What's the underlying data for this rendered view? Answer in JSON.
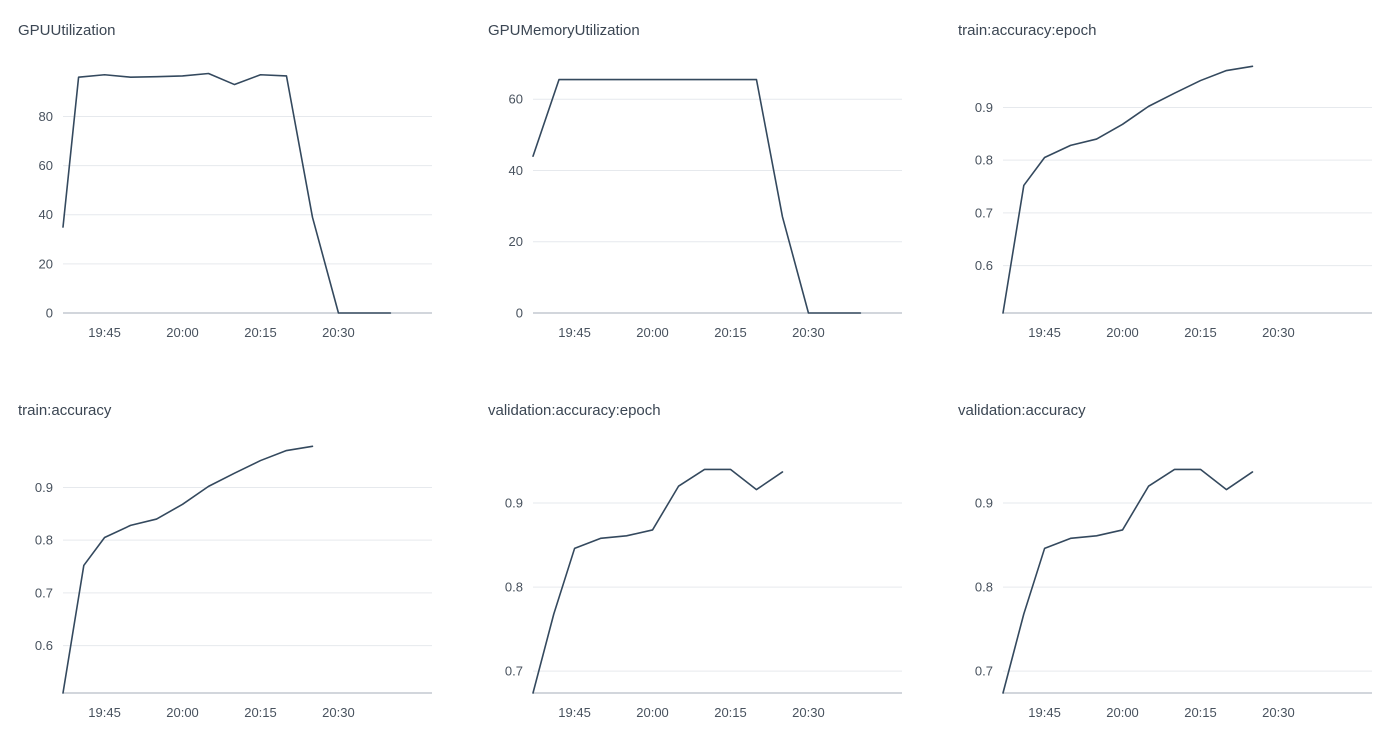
{
  "chart_data": [
    {
      "type": "line",
      "title": "GPUUtilization",
      "xlabel": "",
      "ylabel": "",
      "x": [
        "19:37",
        "19:40",
        "19:45",
        "19:50",
        "19:55",
        "20:00",
        "20:05",
        "20:10",
        "20:15",
        "20:20",
        "20:25",
        "20:30",
        "20:35",
        "20:40"
      ],
      "values": [
        35,
        96,
        97,
        96,
        96.2,
        96.5,
        97.5,
        93,
        97,
        96.5,
        39,
        0,
        0,
        0
      ],
      "xlim": [
        "19:37",
        "20:48"
      ],
      "ylim": [
        0,
        103
      ],
      "yticks": [
        0,
        20,
        40,
        60,
        80
      ],
      "ytick_labels": [
        "0",
        "20",
        "40",
        "60",
        "80"
      ],
      "xticks": [
        "19:45",
        "20:00",
        "20:15",
        "20:30"
      ],
      "grid": true,
      "color": "#34495e"
    },
    {
      "type": "line",
      "title": "GPUMemoryUtilization",
      "xlabel": "",
      "ylabel": "",
      "x": [
        "19:37",
        "19:42",
        "20:20",
        "20:25",
        "20:30",
        "20:40"
      ],
      "values": [
        44,
        65.5,
        65.5,
        27,
        0,
        0
      ],
      "xlim": [
        "19:37",
        "20:48"
      ],
      "ylim": [
        0,
        71
      ],
      "yticks": [
        0,
        20,
        40,
        60
      ],
      "ytick_labels": [
        "0",
        "20",
        "40",
        "60"
      ],
      "xticks": [
        "19:45",
        "20:00",
        "20:15",
        "20:30"
      ],
      "grid": true,
      "color": "#34495e"
    },
    {
      "type": "line",
      "title": "train:accuracy:epoch",
      "xlabel": "",
      "ylabel": "",
      "x": [
        "19:37",
        "19:41",
        "19:45",
        "19:50",
        "19:55",
        "20:00",
        "20:05",
        "20:10",
        "20:15",
        "20:20",
        "20:25"
      ],
      "values": [
        0.51,
        0.752,
        0.805,
        0.828,
        0.84,
        0.868,
        0.902,
        0.927,
        0.951,
        0.97,
        0.978
      ],
      "xlim": [
        "19:37",
        "20:48"
      ],
      "ylim": [
        0.51,
        0.99
      ],
      "yticks": [
        0.6,
        0.7,
        0.8,
        0.9
      ],
      "ytick_labels": [
        "0.6",
        "0.7",
        "0.8",
        "0.9"
      ],
      "xticks": [
        "19:45",
        "20:00",
        "20:15",
        "20:30"
      ],
      "grid": true,
      "color": "#34495e"
    },
    {
      "type": "line",
      "title": "train:accuracy",
      "xlabel": "",
      "ylabel": "",
      "x": [
        "19:37",
        "19:41",
        "19:45",
        "19:50",
        "19:55",
        "20:00",
        "20:05",
        "20:10",
        "20:15",
        "20:20",
        "20:25"
      ],
      "values": [
        0.51,
        0.752,
        0.805,
        0.828,
        0.84,
        0.868,
        0.902,
        0.927,
        0.951,
        0.97,
        0.978
      ],
      "xlim": [
        "19:37",
        "20:48"
      ],
      "ylim": [
        0.51,
        0.99
      ],
      "yticks": [
        0.6,
        0.7,
        0.8,
        0.9
      ],
      "ytick_labels": [
        "0.6",
        "0.7",
        "0.8",
        "0.9"
      ],
      "xticks": [
        "19:45",
        "20:00",
        "20:15",
        "20:30"
      ],
      "grid": true,
      "color": "#34495e"
    },
    {
      "type": "line",
      "title": "validation:accuracy:epoch",
      "xlabel": "",
      "ylabel": "",
      "x": [
        "19:37",
        "19:41",
        "19:45",
        "19:50",
        "19:55",
        "20:00",
        "20:05",
        "20:10",
        "20:15",
        "20:20",
        "20:25"
      ],
      "values": [
        0.674,
        0.768,
        0.846,
        0.858,
        0.861,
        0.868,
        0.92,
        0.94,
        0.94,
        0.916,
        0.937
      ],
      "xlim": [
        "19:37",
        "20:48"
      ],
      "ylim": [
        0.674,
        0.975
      ],
      "yticks": [
        0.7,
        0.8,
        0.9
      ],
      "ytick_labels": [
        "0.7",
        "0.8",
        "0.9"
      ],
      "xticks": [
        "19:45",
        "20:00",
        "20:15",
        "20:30"
      ],
      "grid": true,
      "color": "#34495e"
    },
    {
      "type": "line",
      "title": "validation:accuracy",
      "xlabel": "",
      "ylabel": "",
      "x": [
        "19:37",
        "19:41",
        "19:45",
        "19:50",
        "19:55",
        "20:00",
        "20:05",
        "20:10",
        "20:15",
        "20:20",
        "20:25"
      ],
      "values": [
        0.674,
        0.768,
        0.846,
        0.858,
        0.861,
        0.868,
        0.92,
        0.94,
        0.94,
        0.916,
        0.937
      ],
      "xlim": [
        "19:37",
        "20:48"
      ],
      "ylim": [
        0.674,
        0.975
      ],
      "yticks": [
        0.7,
        0.8,
        0.9
      ],
      "ytick_labels": [
        "0.7",
        "0.8",
        "0.9"
      ],
      "xticks": [
        "19:45",
        "20:00",
        "20:15",
        "20:30"
      ],
      "grid": true,
      "color": "#34495e"
    }
  ]
}
